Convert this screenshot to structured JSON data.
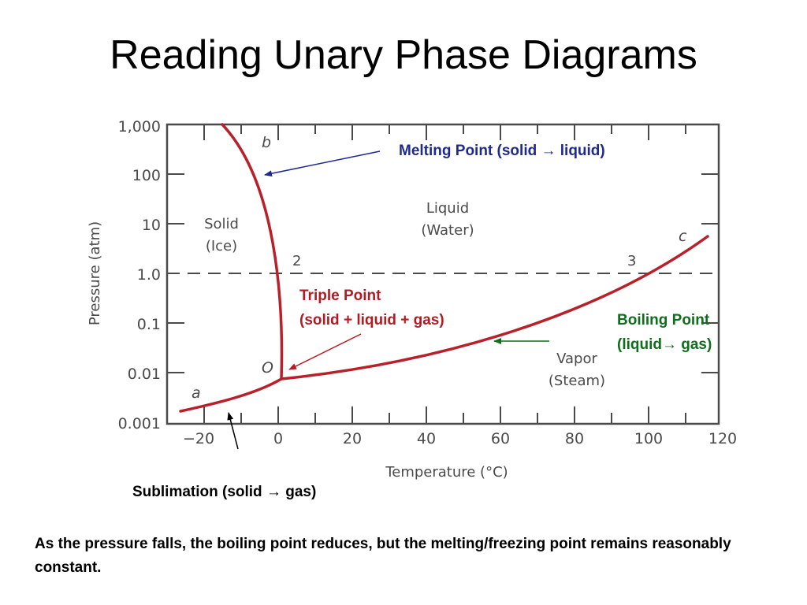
{
  "slide": {
    "title": "Reading Unary Phase Diagrams",
    "footer_note": "As the pressure falls, the boiling point reduces, but the melting/freezing point remains reasonably constant."
  },
  "diagram": {
    "x_axis": {
      "label": "Temperature (°C)",
      "ticks": [
        "−20",
        "0",
        "20",
        "40",
        "60",
        "80",
        "100",
        "120"
      ]
    },
    "y_axis": {
      "label": "Pressure (atm)",
      "ticks": [
        "0.001",
        "0.01",
        "0.1",
        "1.0",
        "10",
        "100",
        "1,000"
      ]
    },
    "regions": {
      "solid": [
        "Solid",
        "(Ice)"
      ],
      "liquid": [
        "Liquid",
        "(Water)"
      ],
      "vapor": [
        "Vapor",
        "(Steam)"
      ]
    },
    "point_labels": {
      "a": "a",
      "b": "b",
      "c": "c",
      "O": "O",
      "p2": "2",
      "p3": "3"
    },
    "annotations": {
      "melting": "Melting Point (solid → liquid)",
      "triple_1": "Triple Point",
      "triple_2": "(solid + liquid + gas)",
      "boiling_1": "Boiling Point",
      "boiling_2": "(liquid→ gas)",
      "sublimation": "Sublimation (solid → gas)"
    },
    "colors": {
      "curve": "#b8202a",
      "melting_annotation": "#1f2a8c",
      "triple_annotation": "#b01c23",
      "boiling_annotation": "#0f6e1c",
      "axis": "#4a4a4a"
    }
  }
}
